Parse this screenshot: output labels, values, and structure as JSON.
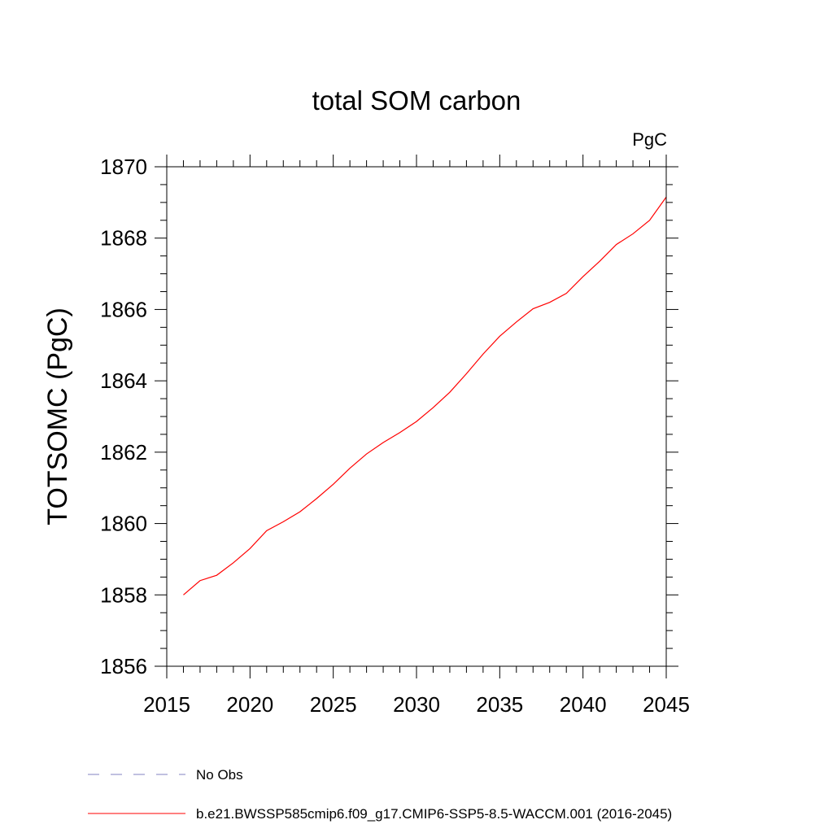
{
  "chart_data": {
    "type": "line",
    "title": "total SOM carbon",
    "units_label": "PgC",
    "xlabel": "",
    "ylabel": "TOTSOMC  (PgC)",
    "xlim": [
      2015,
      2045
    ],
    "ylim": [
      1856,
      1870
    ],
    "x_ticks": [
      2015,
      2020,
      2025,
      2030,
      2035,
      2040,
      2045
    ],
    "y_ticks": [
      1856,
      1858,
      1860,
      1862,
      1864,
      1866,
      1868,
      1870
    ],
    "grid": false,
    "legend_position": "bottom-left",
    "legend": [
      {
        "label": "No Obs",
        "style": "dashed",
        "color": "#8080c0"
      },
      {
        "label": "b.e21.BWSSP585cmip6.f09_g17.CMIP6-SSP5-8.5-WACCM.001 (2016-2045)",
        "style": "solid",
        "color": "#ff0000"
      }
    ],
    "series": [
      {
        "color": "#ff0000",
        "x": [
          2016,
          2017,
          2018,
          2019,
          2020,
          2021,
          2022,
          2023,
          2024,
          2025,
          2026,
          2027,
          2028,
          2029,
          2030,
          2031,
          2032,
          2033,
          2034,
          2035,
          2036,
          2037,
          2038,
          2039,
          2040,
          2041,
          2042,
          2043,
          2044,
          2045
        ],
        "values": [
          1858.0,
          1858.4,
          1858.55,
          1858.9,
          1859.3,
          1859.8,
          1860.05,
          1860.33,
          1860.7,
          1861.1,
          1861.55,
          1861.95,
          1862.27,
          1862.55,
          1862.86,
          1863.25,
          1863.68,
          1864.2,
          1864.75,
          1865.25,
          1865.65,
          1866.02,
          1866.2,
          1866.45,
          1866.92,
          1867.35,
          1867.82,
          1868.12,
          1868.5,
          1869.15
        ]
      }
    ]
  }
}
